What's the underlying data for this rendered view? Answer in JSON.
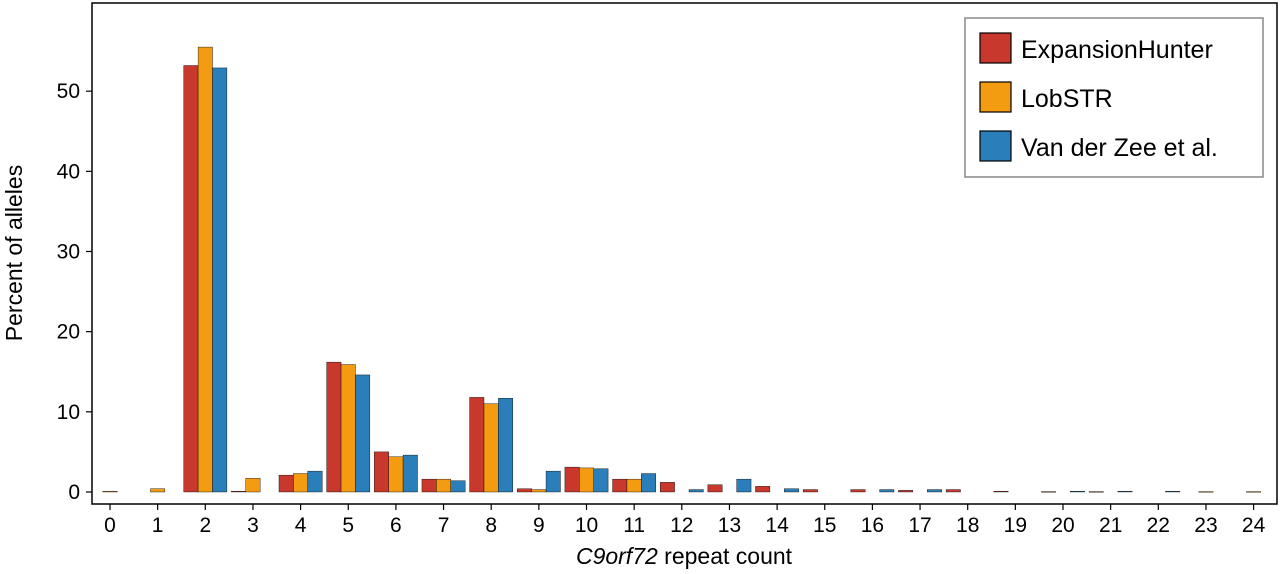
{
  "chart_data": {
    "type": "bar",
    "title": "",
    "xlabel_italic": "C9orf72",
    "xlabel_rest": " repeat count",
    "ylabel": "Percent of alleles",
    "ylim": [
      -1.5,
      61
    ],
    "yticks": [
      0,
      10,
      20,
      30,
      40,
      50
    ],
    "categories": [
      "0",
      "1",
      "2",
      "3",
      "4",
      "5",
      "6",
      "7",
      "8",
      "9",
      "10",
      "11",
      "12",
      "13",
      "14",
      "15",
      "16",
      "17",
      "18",
      "19",
      "20",
      "21",
      "22",
      "23",
      "24"
    ],
    "series": [
      {
        "name": "ExpansionHunter",
        "color": "#c8382d",
        "values": [
          0,
          0,
          53.2,
          0.1,
          2.1,
          16.2,
          5.0,
          1.6,
          11.8,
          0.4,
          3.1,
          1.6,
          1.2,
          0.9,
          0.7,
          0.3,
          0.3,
          0.2,
          0.3,
          0.1,
          0.05,
          0.05,
          0,
          0,
          0
        ]
      },
      {
        "name": "LobSTR",
        "color": "#f39c12",
        "values": [
          0.1,
          0.4,
          55.5,
          1.7,
          2.3,
          15.9,
          4.4,
          1.6,
          11.0,
          0.3,
          3.0,
          1.6,
          0,
          0,
          0,
          0,
          0,
          0,
          0,
          0,
          0,
          0,
          0,
          0.05,
          0.05
        ]
      },
      {
        "name": "Van der Zee et al.",
        "color": "#2a7fba",
        "values": [
          0,
          0,
          52.9,
          0,
          2.6,
          14.6,
          4.6,
          1.4,
          11.7,
          2.6,
          2.9,
          2.3,
          0.3,
          1.6,
          0.4,
          0,
          0.3,
          0.3,
          0,
          0,
          0.1,
          0.1,
          0.1,
          0,
          0
        ]
      }
    ],
    "legend_position": "top-right",
    "grid": false
  }
}
